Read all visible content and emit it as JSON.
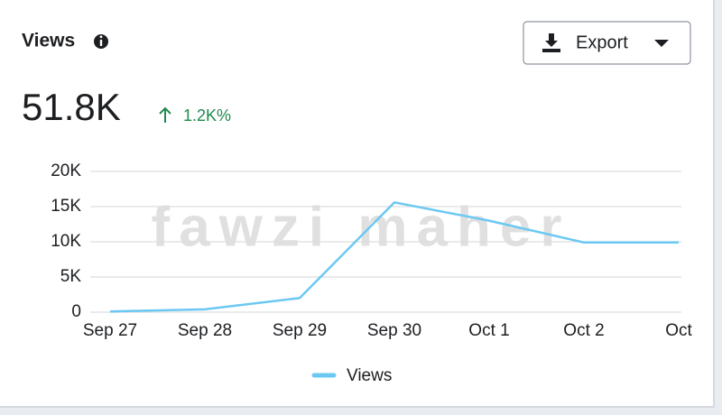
{
  "header": {
    "title": "Views",
    "button": "Export",
    "total": "51.8K",
    "change": "1.2K%"
  },
  "watermark": "fawzi maher",
  "chart_data": {
    "type": "line",
    "categories": [
      "Sep 27",
      "Sep 28",
      "Sep 29",
      "Sep 30",
      "Oct 1",
      "Oct 2",
      "Oct"
    ],
    "series": [
      {
        "name": "Views",
        "color": "#6bc8f2",
        "values": [
          100,
          400,
          2000,
          15600,
          13000,
          9900,
          9900
        ]
      }
    ],
    "ylim": [
      0,
      20000
    ],
    "yticks": [
      0,
      {
        "value": 5000,
        "label": "5K"
      },
      {
        "value": 10000,
        "label": "10K"
      },
      {
        "value": 15000,
        "label": "15K"
      },
      {
        "value": 20000,
        "label": "20K"
      }
    ],
    "grid": true
  }
}
